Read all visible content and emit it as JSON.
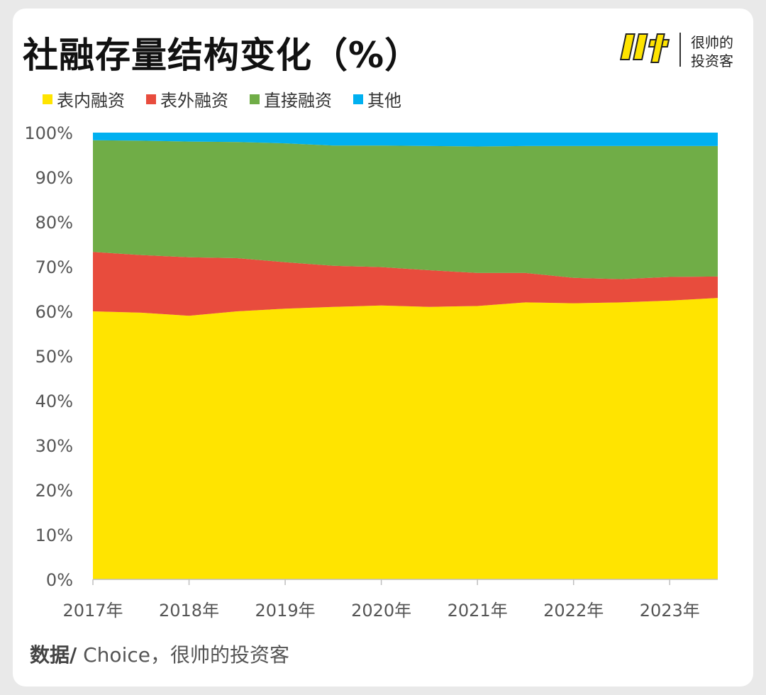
{
  "title": "社融存量结构变化（%）",
  "brand": {
    "logo_icon": "shuai-logo-icon",
    "line1": "很帅的",
    "line2": "投资客"
  },
  "source": {
    "label": "数据/",
    "text": " Choice，很帅的投资客"
  },
  "colors": {
    "表内融资": "#FFE400",
    "表外融资": "#E84C3D",
    "直接融资": "#70AD47",
    "其他": "#00B0F0"
  },
  "chart_data": {
    "type": "area",
    "stacked": true,
    "title": "社融存量结构变化（%）",
    "ylim": [
      0,
      100
    ],
    "y_ticks": [
      "0%",
      "10%",
      "20%",
      "30%",
      "40%",
      "50%",
      "60%",
      "70%",
      "80%",
      "90%",
      "100%"
    ],
    "x_ticks": [
      "2017年",
      "2018年",
      "2019年",
      "2020年",
      "2021年",
      "2022年",
      "2023年"
    ],
    "x": [
      2017.0,
      2017.5,
      2018.0,
      2018.5,
      2019.0,
      2019.5,
      2020.0,
      2020.5,
      2021.0,
      2021.5,
      2022.0,
      2022.5,
      2023.0,
      2023.5
    ],
    "legend_position": "top-left",
    "grid": false,
    "series": [
      {
        "name": "表内融资",
        "values": [
          60,
          59.7,
          59,
          60,
          60.6,
          61,
          61.3,
          61,
          61.2,
          62,
          61.8,
          62,
          62.4,
          63
        ]
      },
      {
        "name": "表外融资",
        "values": [
          13.3,
          12.9,
          13.1,
          11.9,
          10.4,
          9.2,
          8.6,
          8.2,
          7.4,
          6.6,
          5.7,
          5.2,
          5.3,
          4.8
        ]
      },
      {
        "name": "直接融资",
        "values": [
          25,
          25.6,
          25.9,
          26,
          26.6,
          26.9,
          27.2,
          27.8,
          28.3,
          28.4,
          29.5,
          29.8,
          29.3,
          29.2
        ]
      },
      {
        "name": "其他",
        "values": [
          1.7,
          1.8,
          2.0,
          2.1,
          2.4,
          2.9,
          2.9,
          3.0,
          3.1,
          3.0,
          3.0,
          3.0,
          3.0,
          3.0
        ]
      }
    ]
  }
}
